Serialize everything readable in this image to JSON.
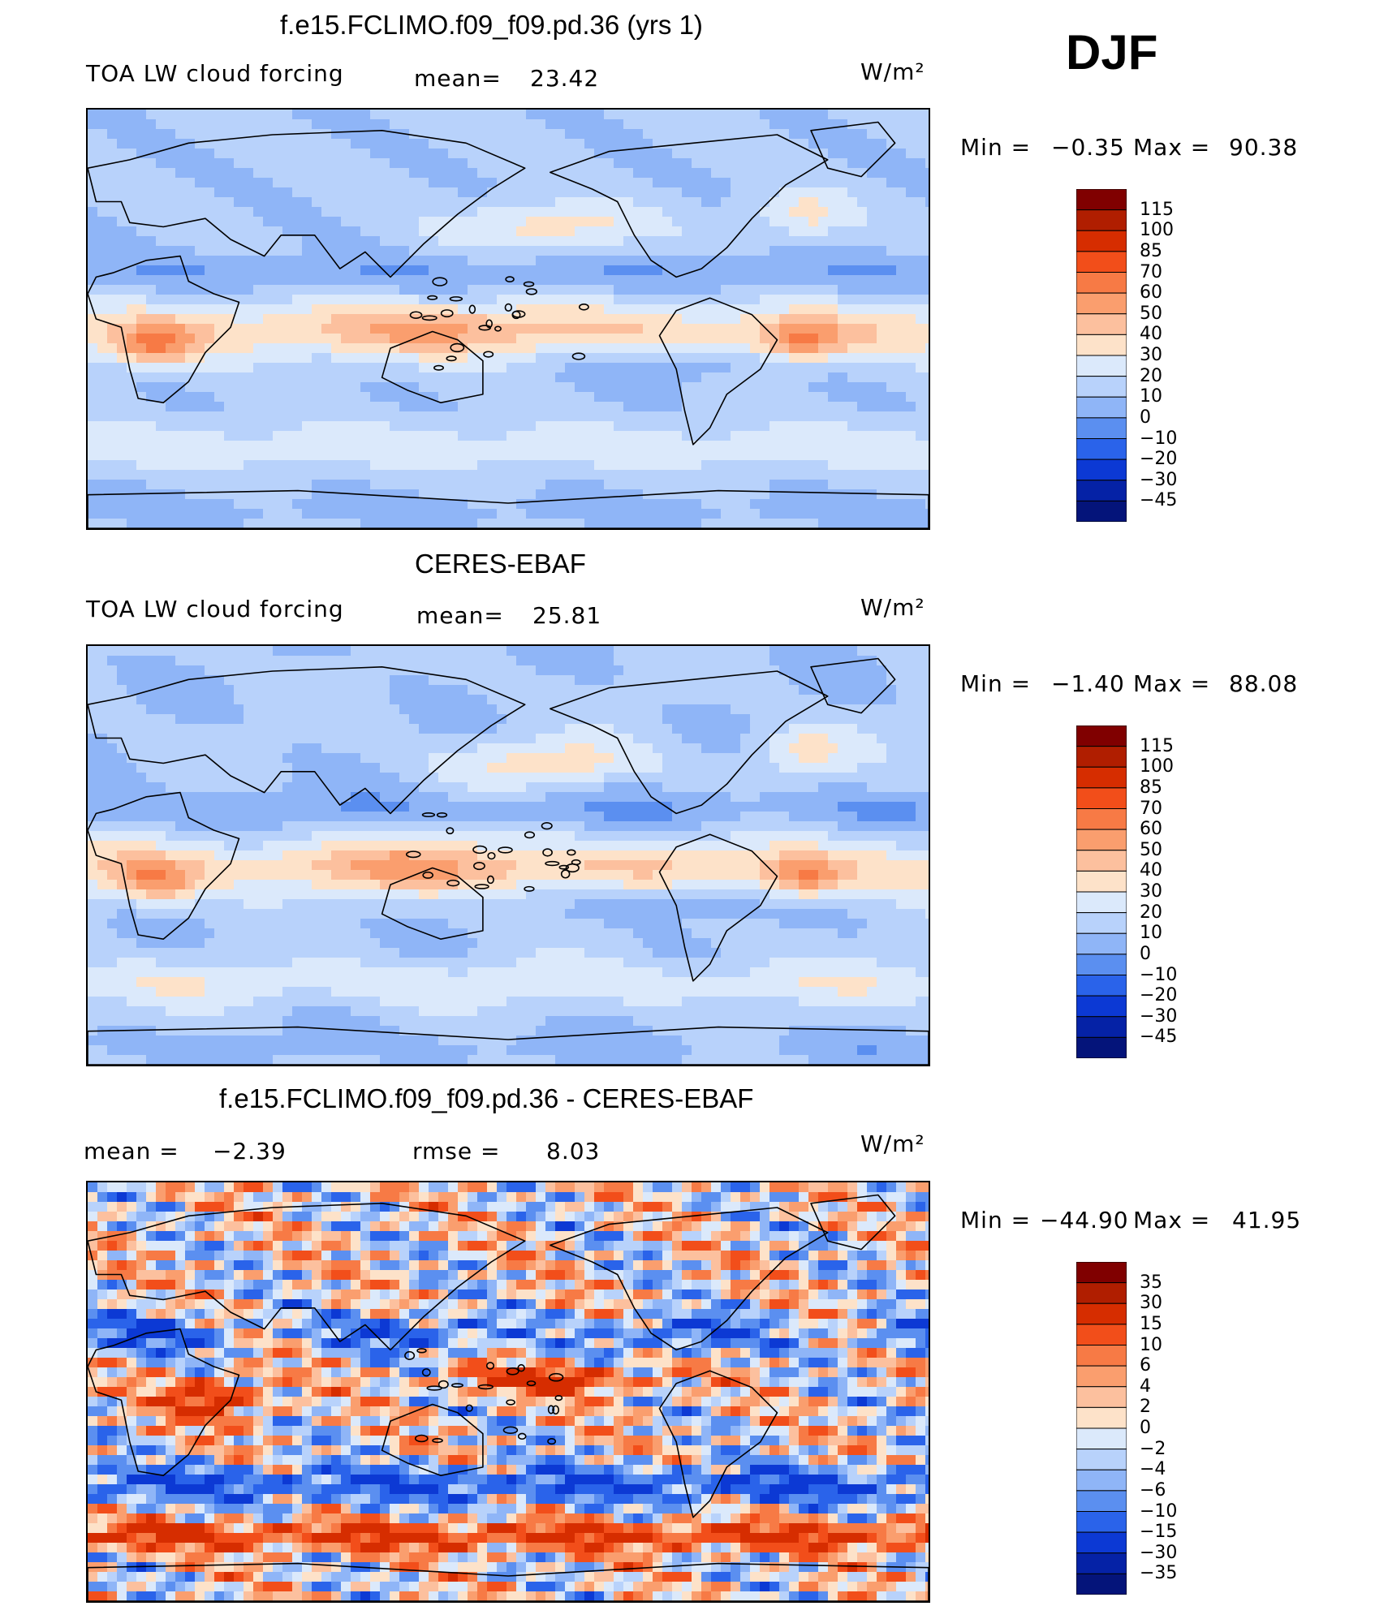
{
  "season": "DJF",
  "units": "W/m²",
  "panels": [
    {
      "title": "f.e15.FCLIMO.f09_f09.pd.36 (yrs 1)",
      "left_label": "TOA LW cloud forcing",
      "stat_label": "mean=",
      "stat_value": "23.42",
      "units": "W/m²",
      "minmax": {
        "min_label": "Min =",
        "min": "−0.35",
        "max_label": "Max =",
        "max": "90.38"
      },
      "colorbar": {
        "labels": [
          "115",
          "100",
          "85",
          "70",
          "60",
          "50",
          "40",
          "30",
          "20",
          "10",
          "0",
          "−10",
          "−20",
          "−30",
          "−45"
        ],
        "colors": [
          "#800000",
          "#b01e00",
          "#d62d00",
          "#f24e1a",
          "#f77a45",
          "#fa9e6e",
          "#fcc09e",
          "#fde2c9",
          "#dbe9fb",
          "#b8d2fb",
          "#8fb5f7",
          "#5b8ff0",
          "#2a63ea",
          "#0c39d4",
          "#0522a6",
          "#04147a"
        ]
      },
      "map_style": "model"
    },
    {
      "title": "CERES-EBAF",
      "left_label": "TOA LW cloud forcing",
      "stat_label": "mean=",
      "stat_value": "25.81",
      "units": "W/m²",
      "minmax": {
        "min_label": "Min =",
        "min": "−1.40",
        "max_label": "Max =",
        "max": "88.08"
      },
      "colorbar": {
        "labels": [
          "115",
          "100",
          "85",
          "70",
          "60",
          "50",
          "40",
          "30",
          "20",
          "10",
          "0",
          "−10",
          "−20",
          "−30",
          "−45"
        ],
        "colors": [
          "#800000",
          "#b01e00",
          "#d62d00",
          "#f24e1a",
          "#f77a45",
          "#fa9e6e",
          "#fcc09e",
          "#fde2c9",
          "#dbe9fb",
          "#b8d2fb",
          "#8fb5f7",
          "#5b8ff0",
          "#2a63ea",
          "#0c39d4",
          "#0522a6",
          "#04147a"
        ]
      },
      "map_style": "obs"
    },
    {
      "title": "f.e15.FCLIMO.f09_f09.pd.36 - CERES-EBAF",
      "left_label": "mean =",
      "left_value": "−2.39",
      "stat_label": "rmse =",
      "stat_value": "8.03",
      "units": "W/m²",
      "minmax": {
        "min_label": "Min =",
        "min": "−44.90",
        "max_label": "Max =",
        "max": "41.95"
      },
      "colorbar": {
        "labels": [
          "35",
          "30",
          "15",
          "10",
          "6",
          "4",
          "2",
          "0",
          "−2",
          "−4",
          "−6",
          "−10",
          "−15",
          "−30",
          "−35"
        ],
        "colors": [
          "#800000",
          "#b01e00",
          "#d62d00",
          "#f24e1a",
          "#f77a45",
          "#fa9e6e",
          "#fcc09e",
          "#fde2c9",
          "#dbe9fb",
          "#b8d2fb",
          "#8fb5f7",
          "#5b8ff0",
          "#2a63ea",
          "#0c39d4",
          "#0522a6",
          "#04147a"
        ]
      },
      "map_style": "diff"
    }
  ]
}
